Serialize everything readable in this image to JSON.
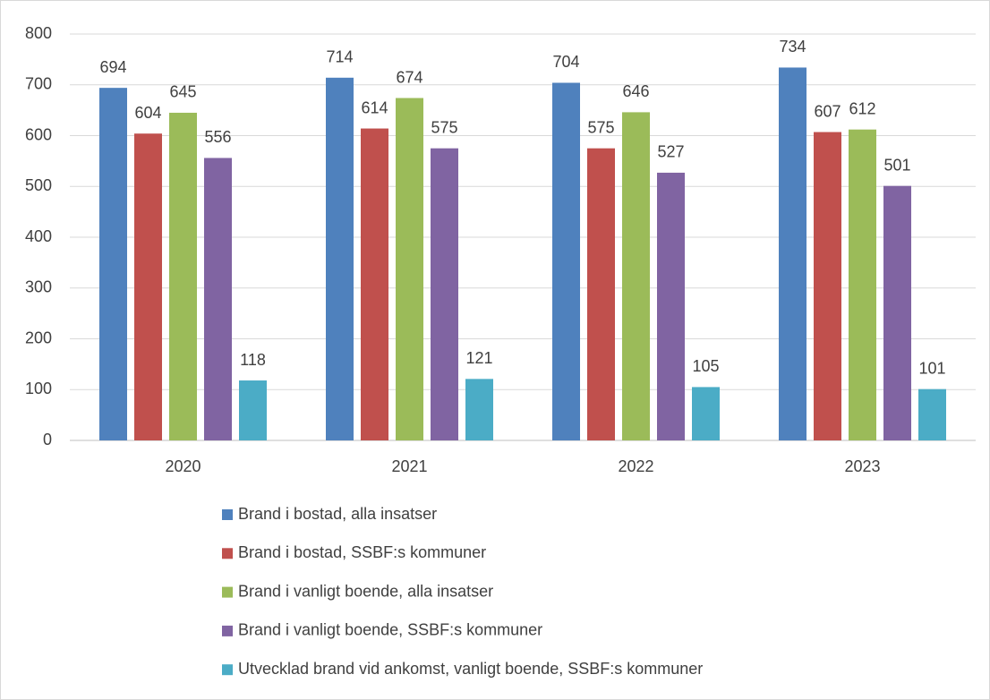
{
  "chart_data": {
    "type": "bar",
    "categories": [
      "2020",
      "2021",
      "2022",
      "2023"
    ],
    "series": [
      {
        "name": "Brand i bostad, alla insatser",
        "color": "#4f81bd",
        "values": [
          694,
          714,
          704,
          734
        ]
      },
      {
        "name": "Brand i bostad, SSBF:s kommuner",
        "color": "#c0504d",
        "values": [
          604,
          614,
          575,
          607
        ]
      },
      {
        "name": "Brand i vanligt boende, alla insatser",
        "color": "#9bbb59",
        "values": [
          645,
          674,
          646,
          612
        ]
      },
      {
        "name": "Brand i vanligt boende, SSBF:s kommuner",
        "color": "#8064a2",
        "values": [
          556,
          575,
          527,
          501
        ]
      },
      {
        "name": "Utvecklad brand vid ankomst, vanligt boende, SSBF:s kommuner",
        "color": "#4bacc6",
        "values": [
          118,
          121,
          105,
          101
        ]
      }
    ],
    "ylim": [
      0,
      800
    ],
    "yticks": [
      0,
      100,
      200,
      300,
      400,
      500,
      600,
      700,
      800
    ],
    "grid": true,
    "legend": "bottom"
  }
}
